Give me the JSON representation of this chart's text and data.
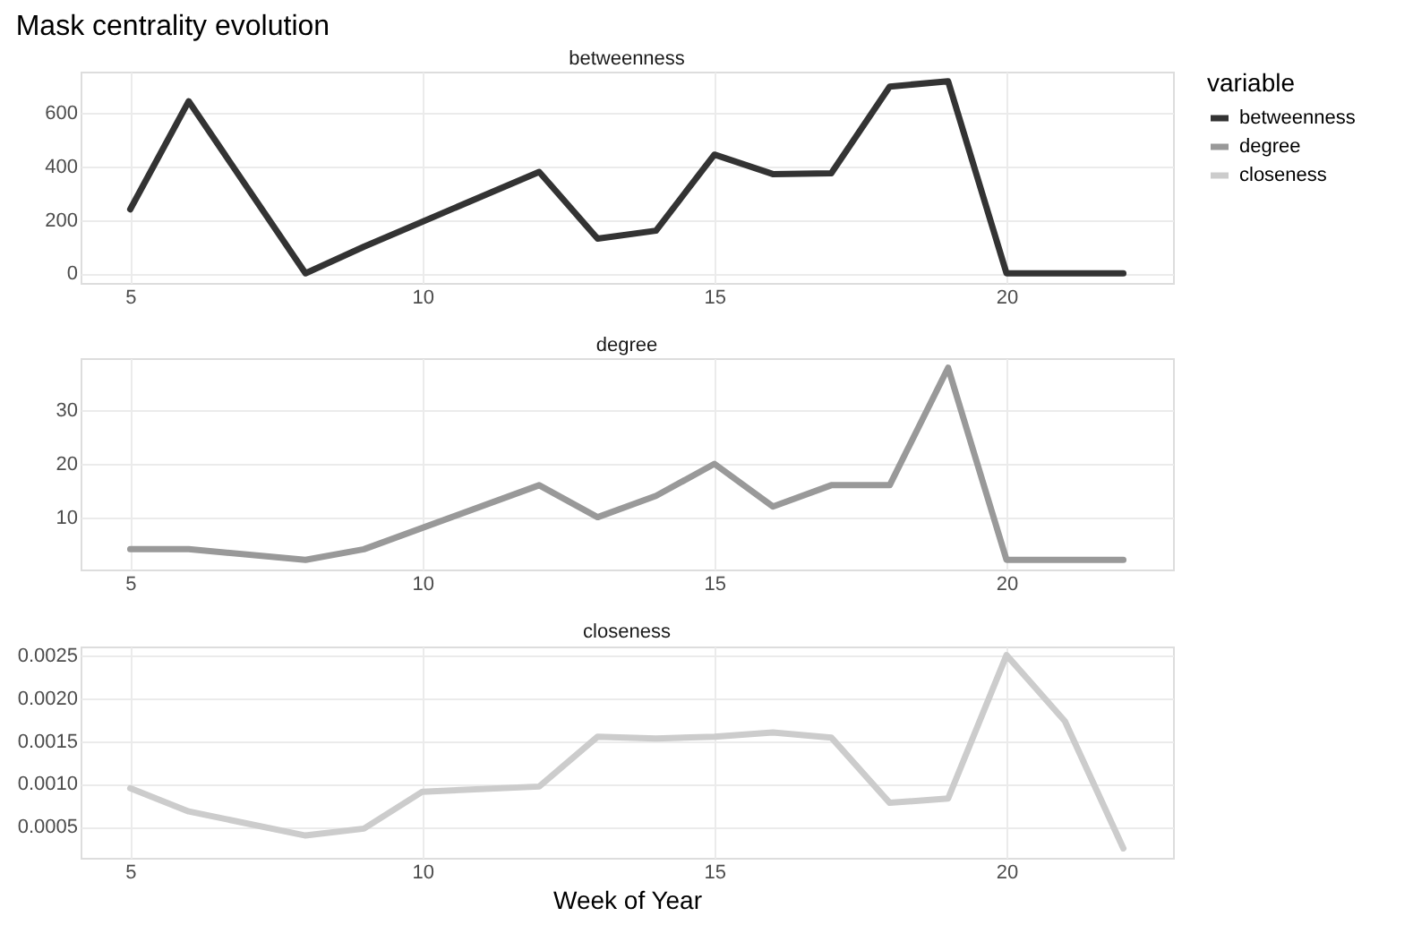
{
  "chart_data": [
    {
      "type": "line",
      "title": "Mask centrality evolution",
      "subtitle": "betweenness",
      "legend_title": "variable",
      "legend": "right",
      "grid": true,
      "line_style": "solid",
      "xlim": [
        4.15,
        22.85
      ],
      "xticks": [
        5,
        10,
        15,
        20
      ],
      "ylim": [
        -36,
        756
      ],
      "yticks": [
        0,
        200,
        400,
        600
      ],
      "series": [
        {
          "name": "betweenness",
          "color": "#333333",
          "x": [
            5,
            6,
            8,
            9,
            12,
            13,
            14,
            15,
            16,
            17,
            18,
            19,
            20,
            22
          ],
          "values": [
            240,
            645,
            0,
            100,
            380,
            130,
            160,
            445,
            372,
            375,
            700,
            720,
            0,
            0
          ]
        }
      ]
    },
    {
      "type": "line",
      "subtitle": "degree",
      "legend": "right",
      "grid": true,
      "line_style": "solid",
      "xlim": [
        4.15,
        22.85
      ],
      "xticks": [
        5,
        10,
        15,
        20
      ],
      "ylim": [
        0.2,
        39.8
      ],
      "yticks": [
        10,
        20,
        30
      ],
      "series": [
        {
          "name": "degree",
          "color": "#999999",
          "x": [
            5,
            6,
            8,
            9,
            12,
            13,
            14,
            15,
            16,
            17,
            18,
            19,
            20,
            22
          ],
          "values": [
            4,
            4,
            2,
            4,
            16,
            10,
            14,
            20,
            12,
            16,
            16,
            38,
            2,
            2
          ]
        }
      ]
    },
    {
      "type": "line",
      "subtitle": "closeness",
      "xlabel": "Week of Year",
      "legend": "right",
      "grid": true,
      "line_style": "solid",
      "xlim": [
        4.15,
        22.85
      ],
      "xticks": [
        5,
        10,
        15,
        20
      ],
      "ylim": [
        0.00014,
        0.0026
      ],
      "yticks": [
        0.0005,
        {
          "value": 0.001,
          "label": "0.0010"
        },
        0.0015,
        {
          "value": 0.002,
          "label": "0.0020"
        },
        0.0025
      ],
      "series": [
        {
          "name": "closeness",
          "color": "#cccccc",
          "x": [
            5,
            6,
            8,
            9,
            10,
            12,
            13,
            14,
            15,
            16,
            17,
            18,
            19,
            20,
            21,
            22
          ],
          "values": [
            0.00095,
            0.00068,
            0.0004,
            0.00048,
            0.00091,
            0.00097,
            0.00155,
            0.00153,
            0.00155,
            0.0016,
            0.00154,
            0.00078,
            0.00083,
            0.0025,
            0.00173,
            0.00025
          ]
        }
      ]
    }
  ]
}
